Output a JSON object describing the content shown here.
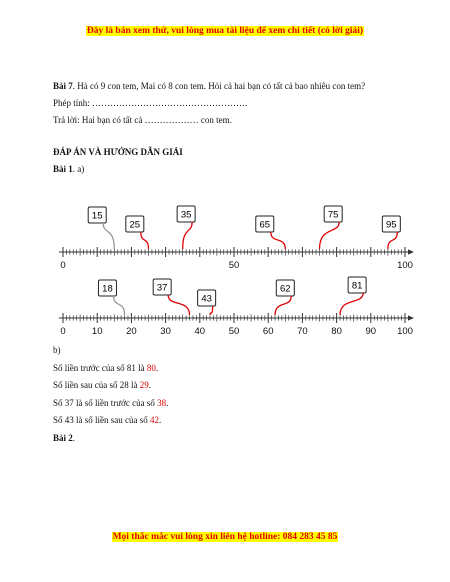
{
  "banner": "Đây là bản xem thử, vui lòng mua tài liệu để xem chi tiết (có lời giải)",
  "bai7": {
    "label": "Bài 7",
    "text": ". Hà có 9 con tem, Mai có 8 con tem. Hỏi cả hai bạn có tất cả bao nhiêu con tem?",
    "phep_tinh": "Phép tính: …………………………………………….",
    "tra_loi": "Trả lời: Hai bạn có tất cả ……………… con tem."
  },
  "answers_heading": "ĐÁP ÁN VÀ HƯỚNG DẪN GIẢI",
  "bai1": {
    "label": "Bài 1",
    "part": ". a)"
  },
  "number_line_1": {
    "tick_labels": [
      "0",
      "50",
      "100"
    ],
    "tags": [
      "15",
      "25",
      "35",
      "65",
      "75",
      "95"
    ]
  },
  "number_line_2": {
    "tick_labels": [
      "0",
      "10",
      "20",
      "30",
      "40",
      "50",
      "60",
      "70",
      "80",
      "90",
      "100"
    ],
    "tags": [
      "18",
      "37",
      "43",
      "62",
      "81"
    ]
  },
  "part_b": {
    "label": "b)",
    "lines": [
      {
        "text": "Số liền trước của số 81 là ",
        "answer": "80"
      },
      {
        "text": "Số liền sau của số 28 là ",
        "answer": "29"
      },
      {
        "text": "Số 37 là số liền trước của số ",
        "answer": "38"
      },
      {
        "text": "Số 43 là số liền sau của số ",
        "answer": "42"
      }
    ],
    "bai2_label": "Bài 2"
  },
  "footer": "Mọi thắc mắc vui lòng xin liên hệ hotline: 084 283 45 85",
  "colors": {
    "answer": "#e00000",
    "highlight": "#ffff00",
    "leader": "#e00000",
    "leader_gray": "#999999"
  }
}
